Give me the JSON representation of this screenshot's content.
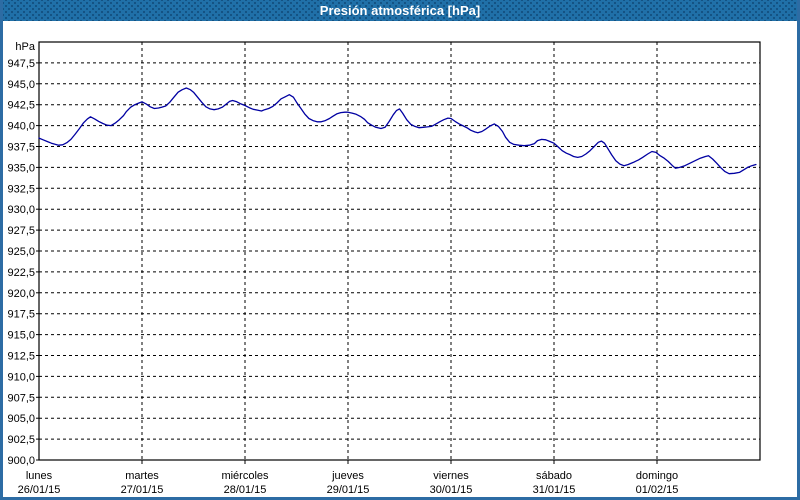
{
  "window": {
    "title": "Presión atmosférica [hPa]"
  },
  "colors": {
    "titlebar_bg": "#2070a8",
    "frame_border": "#2d6ca4",
    "series_line": "#0000a2",
    "grid": "#000000",
    "text": "#000000",
    "plot_bg": "#ffffff"
  },
  "chart_data": {
    "type": "line",
    "title": "Presión atmosférica [hPa]",
    "unit_label": "hPa",
    "ylim": [
      900,
      950
    ],
    "y_tick_step": 2.5,
    "y_tick_labels": [
      "947,5",
      "945,0",
      "942,5",
      "940,0",
      "937,5",
      "935,0",
      "932,5",
      "930,0",
      "927,5",
      "925,0",
      "922,5",
      "920,0",
      "917,5",
      "915,0",
      "912,5",
      "910,0",
      "907,5",
      "905,0",
      "902,5",
      "900,0"
    ],
    "grid": "dashed",
    "legend": "none",
    "x_days": [
      {
        "name": "lunes",
        "date": "26/01/15"
      },
      {
        "name": "martes",
        "date": "27/01/15"
      },
      {
        "name": "miércoles",
        "date": "28/01/15"
      },
      {
        "name": "jueves",
        "date": "29/01/15"
      },
      {
        "name": "viernes",
        "date": "30/01/15"
      },
      {
        "name": "sábado",
        "date": "31/01/15"
      },
      {
        "name": "domingo",
        "date": "01/02/15"
      }
    ],
    "series": [
      {
        "name": "Presión atmosférica",
        "color": "#0000a2",
        "points": [
          [
            0.0,
            938.5
          ],
          [
            0.04,
            938.3
          ],
          [
            0.08,
            938.1
          ],
          [
            0.12,
            937.9
          ],
          [
            0.16,
            937.75
          ],
          [
            0.19,
            937.65
          ],
          [
            0.23,
            937.7
          ],
          [
            0.27,
            937.95
          ],
          [
            0.31,
            938.35
          ],
          [
            0.35,
            938.95
          ],
          [
            0.39,
            939.6
          ],
          [
            0.43,
            940.3
          ],
          [
            0.47,
            940.8
          ],
          [
            0.5,
            941.05
          ],
          [
            0.54,
            940.8
          ],
          [
            0.58,
            940.5
          ],
          [
            0.62,
            940.25
          ],
          [
            0.66,
            940.05
          ],
          [
            0.7,
            940.0
          ],
          [
            0.74,
            940.3
          ],
          [
            0.78,
            940.7
          ],
          [
            0.82,
            941.2
          ],
          [
            0.85,
            941.7
          ],
          [
            0.89,
            942.2
          ],
          [
            0.93,
            942.5
          ],
          [
            0.97,
            942.7
          ],
          [
            1.0,
            942.85
          ],
          [
            1.04,
            942.6
          ],
          [
            1.08,
            942.25
          ],
          [
            1.12,
            942.05
          ],
          [
            1.16,
            942.1
          ],
          [
            1.19,
            942.2
          ],
          [
            1.23,
            942.35
          ],
          [
            1.27,
            942.8
          ],
          [
            1.31,
            943.4
          ],
          [
            1.35,
            944.0
          ],
          [
            1.39,
            944.3
          ],
          [
            1.43,
            944.5
          ],
          [
            1.47,
            944.3
          ],
          [
            1.5,
            944.0
          ],
          [
            1.54,
            943.4
          ],
          [
            1.58,
            942.8
          ],
          [
            1.62,
            942.25
          ],
          [
            1.66,
            942.0
          ],
          [
            1.7,
            941.9
          ],
          [
            1.74,
            942.0
          ],
          [
            1.78,
            942.2
          ],
          [
            1.82,
            942.6
          ],
          [
            1.85,
            942.9
          ],
          [
            1.88,
            943.0
          ],
          [
            1.92,
            942.85
          ],
          [
            1.96,
            942.6
          ],
          [
            2.0,
            942.4
          ],
          [
            2.04,
            942.15
          ],
          [
            2.08,
            941.95
          ],
          [
            2.12,
            941.85
          ],
          [
            2.16,
            941.75
          ],
          [
            2.19,
            941.9
          ],
          [
            2.23,
            942.05
          ],
          [
            2.27,
            942.3
          ],
          [
            2.31,
            942.7
          ],
          [
            2.35,
            943.2
          ],
          [
            2.39,
            943.45
          ],
          [
            2.43,
            943.7
          ],
          [
            2.47,
            943.4
          ],
          [
            2.5,
            942.8
          ],
          [
            2.54,
            942.1
          ],
          [
            2.58,
            941.4
          ],
          [
            2.62,
            940.85
          ],
          [
            2.66,
            940.6
          ],
          [
            2.7,
            940.45
          ],
          [
            2.74,
            940.45
          ],
          [
            2.78,
            940.6
          ],
          [
            2.82,
            940.85
          ],
          [
            2.85,
            941.1
          ],
          [
            2.89,
            941.4
          ],
          [
            2.93,
            941.55
          ],
          [
            2.97,
            941.6
          ],
          [
            3.0,
            941.6
          ],
          [
            3.04,
            941.5
          ],
          [
            3.08,
            941.35
          ],
          [
            3.12,
            941.1
          ],
          [
            3.16,
            940.75
          ],
          [
            3.19,
            940.35
          ],
          [
            3.23,
            940.05
          ],
          [
            3.27,
            939.8
          ],
          [
            3.32,
            939.65
          ],
          [
            3.36,
            939.8
          ],
          [
            3.4,
            940.5
          ],
          [
            3.44,
            941.3
          ],
          [
            3.47,
            941.8
          ],
          [
            3.5,
            942.0
          ],
          [
            3.53,
            941.5
          ],
          [
            3.57,
            940.7
          ],
          [
            3.61,
            940.15
          ],
          [
            3.65,
            939.9
          ],
          [
            3.69,
            939.75
          ],
          [
            3.73,
            939.8
          ],
          [
            3.77,
            939.85
          ],
          [
            3.81,
            939.9
          ],
          [
            3.84,
            940.1
          ],
          [
            3.89,
            940.45
          ],
          [
            3.93,
            940.7
          ],
          [
            3.97,
            940.9
          ],
          [
            4.0,
            940.85
          ],
          [
            4.04,
            940.5
          ],
          [
            4.08,
            940.2
          ],
          [
            4.12,
            939.95
          ],
          [
            4.16,
            939.7
          ],
          [
            4.19,
            939.45
          ],
          [
            4.23,
            939.25
          ],
          [
            4.26,
            939.15
          ],
          [
            4.3,
            939.3
          ],
          [
            4.34,
            939.6
          ],
          [
            4.38,
            939.95
          ],
          [
            4.42,
            940.2
          ],
          [
            4.46,
            939.9
          ],
          [
            4.5,
            939.3
          ],
          [
            4.53,
            938.6
          ],
          [
            4.57,
            938.0
          ],
          [
            4.61,
            937.75
          ],
          [
            4.66,
            937.65
          ],
          [
            4.71,
            937.6
          ],
          [
            4.76,
            937.65
          ],
          [
            4.81,
            937.85
          ],
          [
            4.84,
            938.2
          ],
          [
            4.88,
            938.35
          ],
          [
            4.92,
            938.3
          ],
          [
            4.96,
            938.1
          ],
          [
            5.0,
            937.9
          ],
          [
            5.04,
            937.45
          ],
          [
            5.08,
            937.0
          ],
          [
            5.12,
            936.7
          ],
          [
            5.16,
            936.5
          ],
          [
            5.19,
            936.3
          ],
          [
            5.23,
            936.2
          ],
          [
            5.27,
            936.3
          ],
          [
            5.31,
            936.6
          ],
          [
            5.35,
            937.0
          ],
          [
            5.39,
            937.5
          ],
          [
            5.43,
            938.0
          ],
          [
            5.46,
            938.15
          ],
          [
            5.49,
            937.9
          ],
          [
            5.52,
            937.3
          ],
          [
            5.56,
            936.5
          ],
          [
            5.6,
            935.8
          ],
          [
            5.64,
            935.4
          ],
          [
            5.68,
            935.2
          ],
          [
            5.72,
            935.35
          ],
          [
            5.77,
            935.6
          ],
          [
            5.82,
            935.9
          ],
          [
            5.86,
            936.2
          ],
          [
            5.91,
            936.6
          ],
          [
            5.95,
            936.9
          ],
          [
            5.99,
            936.8
          ],
          [
            6.03,
            936.4
          ],
          [
            6.07,
            936.1
          ],
          [
            6.11,
            935.7
          ],
          [
            6.15,
            935.2
          ],
          [
            6.18,
            934.9
          ],
          [
            6.22,
            935.0
          ],
          [
            6.27,
            935.2
          ],
          [
            6.32,
            935.5
          ],
          [
            6.37,
            935.8
          ],
          [
            6.42,
            936.1
          ],
          [
            6.47,
            936.3
          ],
          [
            6.5,
            936.4
          ],
          [
            6.54,
            936.0
          ],
          [
            6.58,
            935.5
          ],
          [
            6.62,
            934.95
          ],
          [
            6.66,
            934.5
          ],
          [
            6.7,
            934.25
          ],
          [
            6.75,
            934.3
          ],
          [
            6.8,
            934.4
          ],
          [
            6.84,
            934.7
          ],
          [
            6.88,
            935.0
          ],
          [
            6.92,
            935.2
          ],
          [
            6.96,
            935.35
          ]
        ]
      }
    ]
  }
}
